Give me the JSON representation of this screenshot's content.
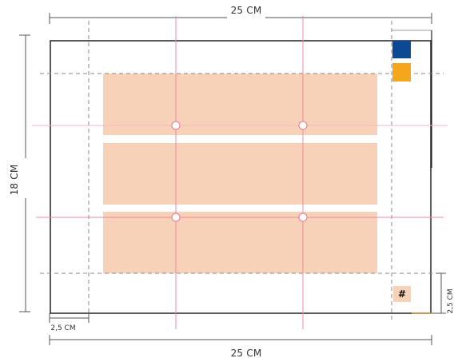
{
  "dimensions": {
    "top_width": "25 CM",
    "bottom_width": "25 CM",
    "left_height": "18 CM",
    "bottom_left_margin": "2,5 CM",
    "right_bottom_margin": "2,5 CM"
  },
  "corner_mark": "#",
  "colors": {
    "content_fill": "#f7d2b8",
    "guide_line": "#f08a9c",
    "dashed_line": "#888888",
    "frame": "#222222",
    "blue_swatch": "#0a4a94",
    "orange_swatch": "#f4a71c",
    "dimension_line": "#555555"
  }
}
